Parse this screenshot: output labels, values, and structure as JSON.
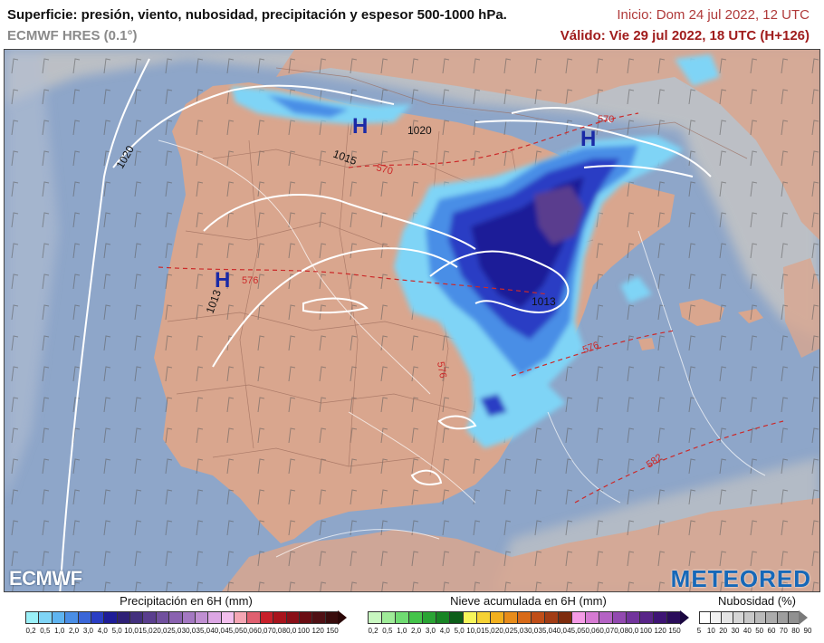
{
  "header": {
    "title": "Superficie: presión, viento, nubosidad, precipitación y espesor 500-1000 hPa.",
    "model": "ECMWF HRES (0.1°)",
    "inicio": "Inicio: Dom 24 jul 2022, 12 UTC",
    "valido": "Válido: Vie 29 jul 2022, 18 UTC (H+126)"
  },
  "map": {
    "colors": {
      "sea": "#8ea6c9",
      "land": "#d9a68e",
      "cloud": "#c4c4c4",
      "isobar": "#ffffff",
      "thickness": "#cc2a2a"
    },
    "high_centers": [
      "H",
      "H",
      "H"
    ],
    "isobar_labels": [
      "1020",
      "1020",
      "1015",
      "1013",
      "1013"
    ],
    "thickness_labels": [
      "570",
      "570",
      "576",
      "576",
      "576",
      "582"
    ]
  },
  "legend": {
    "precip": {
      "title": "Precipitación en 6H (mm)",
      "colors": [
        "#9af0f8",
        "#7fd4f6",
        "#5fb4f0",
        "#4a8ee6",
        "#3a66d8",
        "#2a3ec4",
        "#1e1c98",
        "#2e2076",
        "#43307e",
        "#5a3e8e",
        "#71509e",
        "#8a62b0",
        "#a478c2",
        "#c08fd2",
        "#dca6e4",
        "#f3bfee",
        "#f5a6b4",
        "#e06070",
        "#c8202a",
        "#a8141c",
        "#8a1018",
        "#6a0c12",
        "#501014",
        "#3a0c0c"
      ],
      "ticks": [
        "0,2",
        "0,5",
        "1,0",
        "2,0",
        "3,0",
        "4,0",
        "5,0",
        "10,0",
        "15,0",
        "20,0",
        "25,0",
        "30,0",
        "35,0",
        "40,0",
        "45,0",
        "50,0",
        "60,0",
        "70,0",
        "80,0",
        "100",
        "120",
        "150"
      ]
    },
    "snow": {
      "title": "Nieve acumulada en 6H (mm)",
      "colors": [
        "#c8f7c0",
        "#9fec98",
        "#70dc72",
        "#44c44a",
        "#2aa434",
        "#188424",
        "#0c5e18",
        "#f6f65a",
        "#f6d234",
        "#f2b01e",
        "#e88c1a",
        "#d86a18",
        "#c04e18",
        "#a23c14",
        "#7e2c0e",
        "#f59be6",
        "#d67ad2",
        "#b462c4",
        "#9249b0",
        "#72349c",
        "#582488",
        "#3e1474",
        "#2a0c5a"
      ],
      "ticks": [
        "0,2",
        "0,5",
        "1,0",
        "2,0",
        "3,0",
        "4,0",
        "5,0",
        "10,0",
        "15,0",
        "20,0",
        "25,0",
        "30,0",
        "35,0",
        "40,0",
        "45,0",
        "50,0",
        "60,0",
        "70,0",
        "80,0",
        "100",
        "120",
        "150"
      ]
    },
    "cloud": {
      "title": "Nubosidad (%)",
      "colors": [
        "#ffffff",
        "#f2f2f2",
        "#e4e4e4",
        "#d6d6d6",
        "#c8c8c8",
        "#bababa",
        "#acacac",
        "#9e9e9e",
        "#909090"
      ],
      "ticks": [
        "5",
        "10",
        "20",
        "30",
        "40",
        "50",
        "60",
        "70",
        "80",
        "90"
      ]
    }
  },
  "logos": {
    "ecmwf": "ECMWF",
    "meteored": "METEORED"
  }
}
